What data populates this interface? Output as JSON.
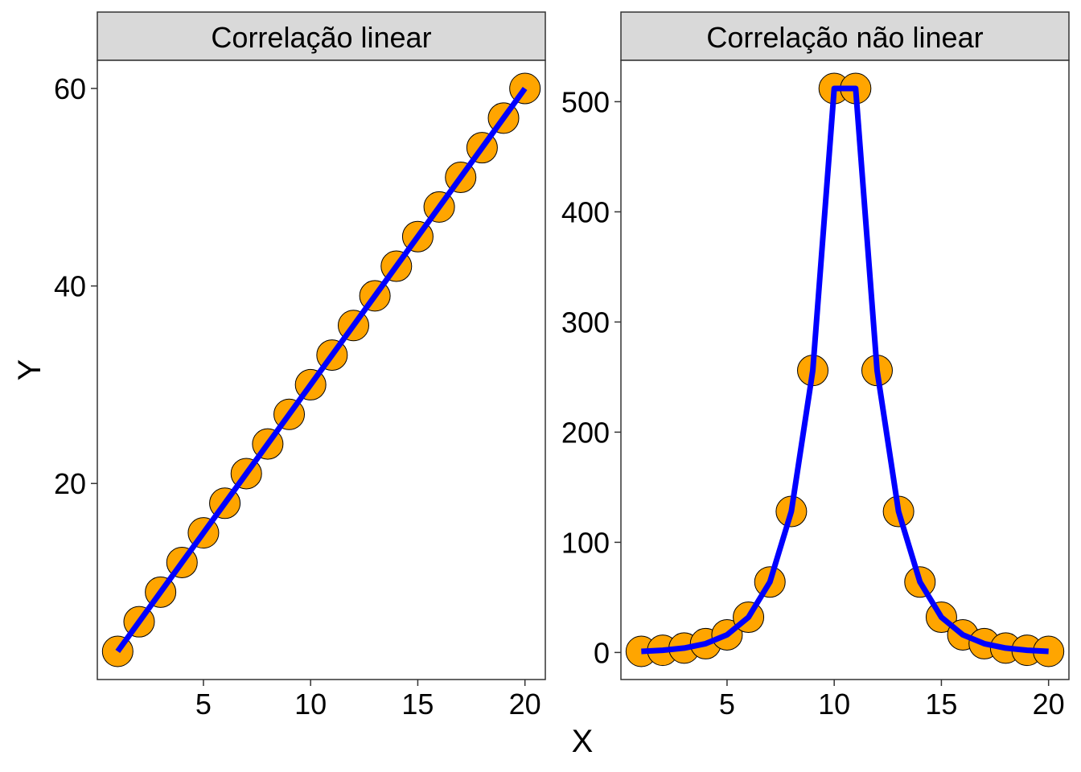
{
  "chart_data": [
    {
      "type": "line",
      "title": "Correlação linear",
      "x": [
        1,
        2,
        3,
        4,
        5,
        6,
        7,
        8,
        9,
        10,
        11,
        12,
        13,
        14,
        15,
        16,
        17,
        18,
        19,
        20
      ],
      "series": [
        {
          "values": [
            3,
            6,
            9,
            12,
            15,
            18,
            21,
            24,
            27,
            30,
            33,
            36,
            39,
            42,
            45,
            48,
            51,
            54,
            57,
            60
          ]
        }
      ],
      "x_ticks": [
        5,
        10,
        15,
        20
      ],
      "y_ticks": [
        20,
        40,
        60
      ],
      "xlim": [
        0.05,
        20.95
      ],
      "ylim": [
        0.15,
        62.85
      ],
      "markers": "circle",
      "grid": false
    },
    {
      "type": "line",
      "title": "Correlação não linear",
      "x": [
        1,
        2,
        3,
        4,
        5,
        6,
        7,
        8,
        9,
        10,
        11,
        12,
        13,
        14,
        15,
        16,
        17,
        18,
        19,
        20
      ],
      "series": [
        {
          "values": [
            1,
            2,
            4,
            8,
            16,
            32,
            64,
            128,
            256,
            512,
            512,
            256,
            128,
            64,
            32,
            16,
            8,
            4,
            2,
            1
          ]
        }
      ],
      "x_ticks": [
        5,
        10,
        15,
        20
      ],
      "y_ticks": [
        0,
        100,
        200,
        300,
        400,
        500
      ],
      "xlim": [
        0.05,
        20.95
      ],
      "ylim": [
        -24.55,
        537.55
      ],
      "markers": "circle",
      "grid": false
    }
  ],
  "axes": {
    "xlabel": "X",
    "ylabel": "Y"
  },
  "colors": {
    "marker_fill": "#FFA500",
    "marker_stroke": "#000000",
    "line": "#0000FF",
    "strip_fill": "#D9D9D9"
  }
}
